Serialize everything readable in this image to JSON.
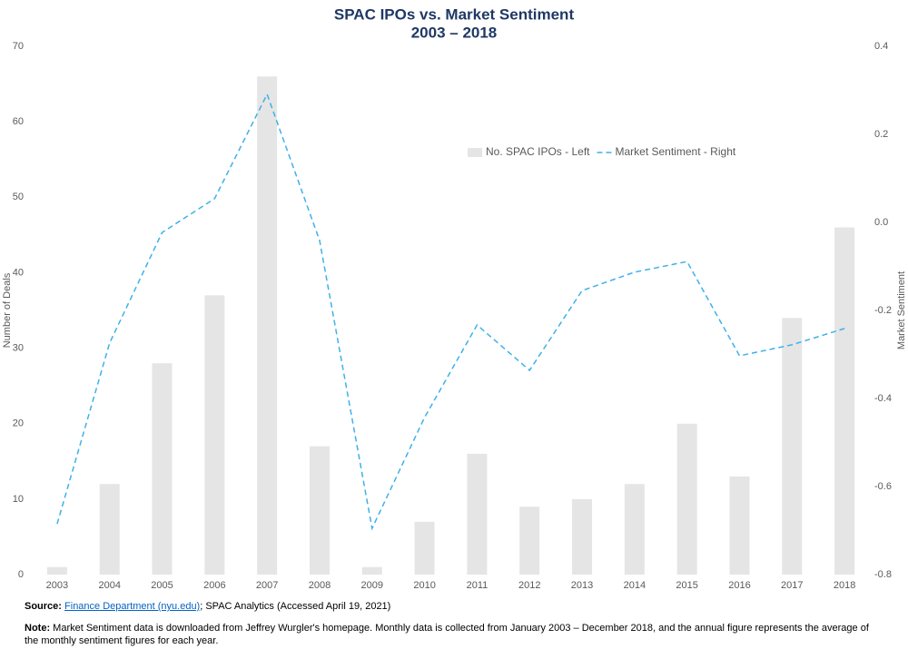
{
  "chart_data": {
    "type": "combo",
    "title": "SPAC IPOs vs. Market Sentiment",
    "subtitle": "2003 – 2018",
    "y_label": "Number of Deals",
    "y2_label": "Market Sentiment",
    "categories": [
      "2003",
      "2004",
      "2005",
      "2006",
      "2007",
      "2008",
      "2009",
      "2010",
      "2011",
      "2012",
      "2013",
      "2014",
      "2015",
      "2016",
      "2017",
      "2018"
    ],
    "series": [
      {
        "name": "No. SPAC IPOs - Left",
        "type": "bar",
        "color": "#e5e5e5",
        "values": [
          1,
          12,
          28,
          37,
          66,
          17,
          1,
          7,
          16,
          9,
          10,
          12,
          20,
          13,
          34,
          46
        ]
      },
      {
        "name": "Market Sentiment - Right",
        "type": "line",
        "axis": "y2",
        "color": "#3eb1e8",
        "dashed": true,
        "values": [
          -0.685,
          -0.274,
          -0.023,
          0.054,
          0.291,
          -0.041,
          -0.695,
          -0.443,
          -0.233,
          -0.336,
          -0.155,
          -0.113,
          -0.089,
          -0.303,
          -0.278,
          -0.241
        ]
      }
    ],
    "ylim": [
      0,
      70
    ],
    "yticks": [
      0,
      10,
      20,
      30,
      40,
      50,
      60,
      70
    ],
    "y2lim": [
      -0.8,
      0.4
    ],
    "y2ticks": [
      -0.8,
      -0.6,
      -0.4,
      -0.2,
      {
        "value": 0,
        "label": "0.0"
      },
      0.2,
      0.4
    ],
    "legend": "upper center",
    "grid": false,
    "source": {
      "label": "Source:",
      "link": "Finance Department (nyu.edu)",
      "text": "; SPAC Analytics (Accessed April 19, 2021)"
    },
    "note": {
      "label": "Note:",
      "text": "Market Sentiment data is downloaded from Jeffrey Wurgler's homepage. Monthly data is collected from January 2003 – December 2018, and the annual figure represents the average of the monthly sentiment figures for each year."
    }
  }
}
